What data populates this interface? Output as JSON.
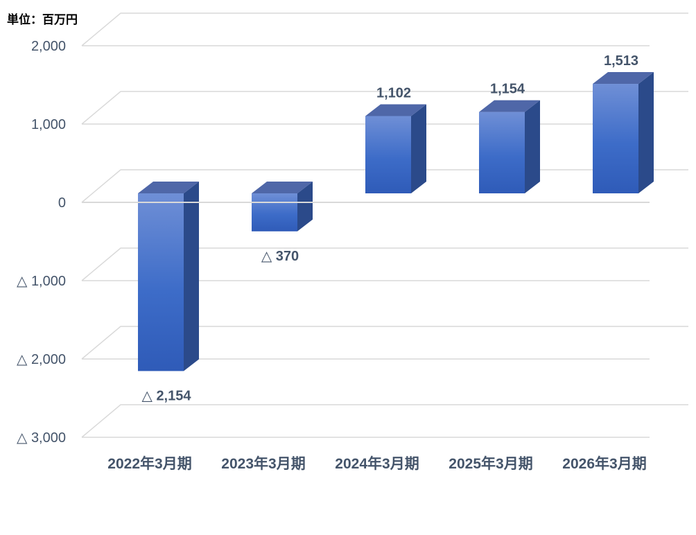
{
  "chart_data": {
    "type": "bar",
    "unit_label": "単位：百万円",
    "categories": [
      "2022年3月期",
      "2023年3月期",
      "2024年3月期",
      "2025年3月期",
      "2026年3月期"
    ],
    "values": [
      -2154,
      -370,
      1102,
      1154,
      1513
    ],
    "data_labels": [
      "△ 2,154",
      "△ 370",
      "1,102",
      "1,154",
      "1,513"
    ],
    "y_ticks": [
      {
        "value": 2000,
        "label": "2,000"
      },
      {
        "value": 1000,
        "label": "1,000"
      },
      {
        "value": 0,
        "label": "0"
      },
      {
        "value": -1000,
        "label": "△ 1,000"
      },
      {
        "value": -2000,
        "label": "△ 2,000"
      },
      {
        "value": -3000,
        "label": "△ 3,000"
      }
    ],
    "ylim": [
      -3000,
      2000
    ],
    "grid": true,
    "legend": "none",
    "style": "3d-column",
    "colors": {
      "bar_top": "#6f8fd6",
      "bar_mid": "#3d6cc8",
      "bar_bottom": "#2f5bb8",
      "bar_side": "#2b4a8a",
      "bar_cap": "#4f67a8",
      "grid": "#d9d9d9",
      "text": "#44546a"
    }
  }
}
